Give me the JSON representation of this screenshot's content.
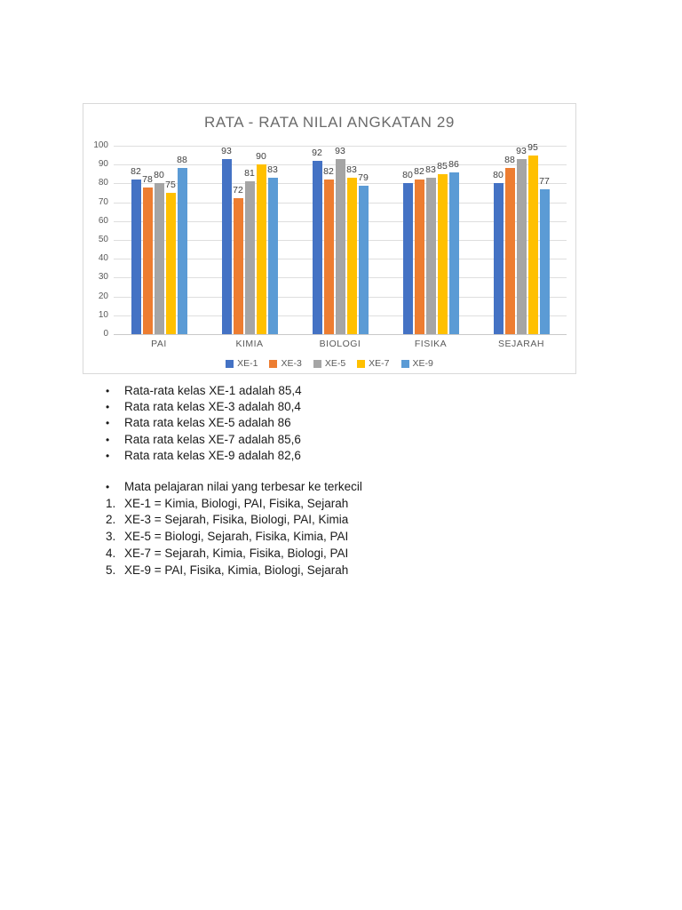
{
  "chart_data": {
    "type": "bar",
    "title": "RATA - RATA NILAI ANGKATAN 29",
    "categories": [
      "PAI",
      "KIMIA",
      "BIOLOGI",
      "FISIKA",
      "SEJARAH"
    ],
    "series": [
      {
        "name": "XE-1",
        "color": "#4472C4",
        "values": [
          82,
          93,
          92,
          80,
          80
        ]
      },
      {
        "name": "XE-3",
        "color": "#ED7D31",
        "values": [
          78,
          72,
          82,
          82,
          88
        ]
      },
      {
        "name": "XE-5",
        "color": "#A5A5A5",
        "values": [
          80,
          81,
          93,
          83,
          93
        ]
      },
      {
        "name": "XE-7",
        "color": "#FFC000",
        "values": [
          75,
          90,
          83,
          85,
          95
        ]
      },
      {
        "name": "XE-9",
        "color": "#5B9BD5",
        "values": [
          88,
          83,
          79,
          86,
          77
        ]
      }
    ],
    "ylim": [
      0,
      100
    ],
    "yticks": [
      0,
      10,
      20,
      30,
      40,
      50,
      60,
      70,
      80,
      90,
      100
    ],
    "grid": "horizontal",
    "legend_position": "bottom",
    "data_labels": true
  },
  "notes": {
    "bullet_glyph": "•",
    "averages": [
      "Rata-rata kelas XE-1 adalah 85,4",
      "Rata rata kelas XE-3 adalah 80,4",
      "Rata rata kelas XE-5 adalah 86",
      "Rata rata kelas XE-7 adalah 85,6",
      "Rata rata kelas XE-9 adalah 82,6"
    ],
    "ranking_header": "Mata pelajaran nilai yang terbesar ke terkecil",
    "rankings": [
      {
        "num": "1.",
        "text": "XE-1 = Kimia, Biologi, PAI, Fisika, Sejarah"
      },
      {
        "num": "2.",
        "text": "XE-3 = Sejarah, Fisika, Biologi, PAI, Kimia"
      },
      {
        "num": "3.",
        "text": "XE-5 = Biologi, Sejarah, Fisika, Kimia, PAI"
      },
      {
        "num": "4.",
        "text": "XE-7 = Sejarah, Kimia, Fisika, Biologi, PAI"
      },
      {
        "num": "5.",
        "text": "XE-9 = PAI, Fisika, Kimia, Biologi, Sejarah"
      }
    ]
  },
  "colors": {
    "chart_border": "#d9d9d9",
    "gridline": "#dedede",
    "title_text": "#6b6b6b",
    "axis_text": "#595959",
    "data_label_text": "#404040",
    "body_text": "#1a1a1a"
  }
}
